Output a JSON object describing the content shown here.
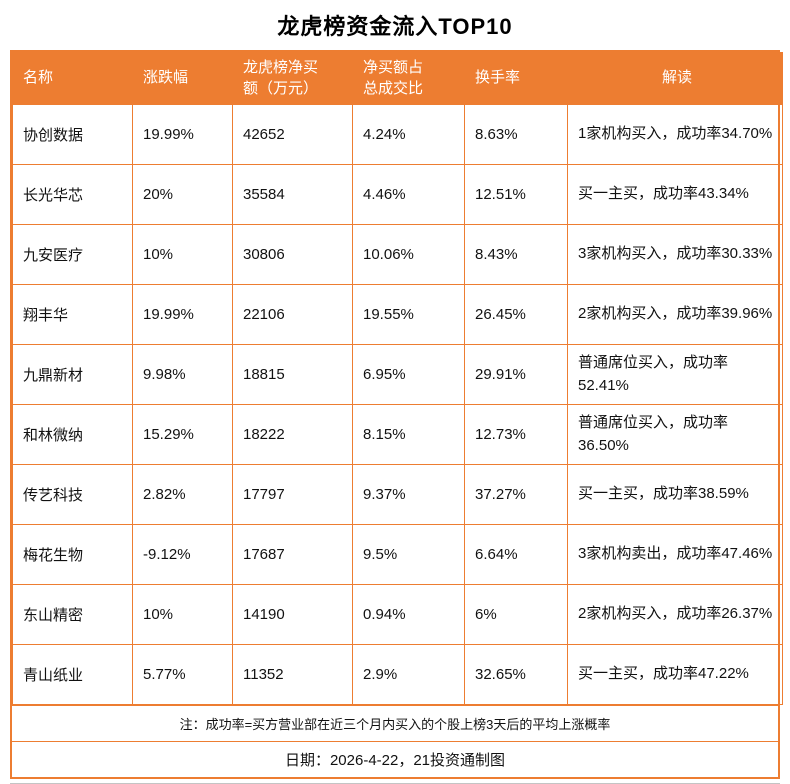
{
  "chart_data": {
    "type": "table",
    "title": "龙虎榜资金流入TOP10",
    "columns": [
      "名称",
      "涨跌幅",
      "龙虎榜净买\n额（万元）",
      "净买额占\n总成交比",
      "换手率",
      "解读"
    ],
    "rows": [
      [
        "协创数据",
        "19.99%",
        "42652",
        "4.24%",
        "8.63%",
        "1家机构买入，成功率34.70%"
      ],
      [
        "长光华芯",
        "20%",
        "35584",
        "4.46%",
        "12.51%",
        "买一主买，成功率43.34%"
      ],
      [
        "九安医疗",
        "10%",
        "30806",
        "10.06%",
        "8.43%",
        "3家机构买入，成功率30.33%"
      ],
      [
        "翔丰华",
        "19.99%",
        "22106",
        "19.55%",
        "26.45%",
        "2家机构买入，成功率39.96%"
      ],
      [
        "九鼎新材",
        "9.98%",
        "18815",
        "6.95%",
        "29.91%",
        "普通席位买入，成功率52.41%"
      ],
      [
        "和林微纳",
        "15.29%",
        "18222",
        "8.15%",
        "12.73%",
        "普通席位买入，成功率36.50%"
      ],
      [
        "传艺科技",
        "2.82%",
        "17797",
        "9.37%",
        "37.27%",
        "买一主买，成功率38.59%"
      ],
      [
        "梅花生物",
        "-9.12%",
        "17687",
        "9.5%",
        "6.64%",
        "3家机构卖出，成功率47.46%"
      ],
      [
        "东山精密",
        "10%",
        "14190",
        "0.94%",
        "6%",
        "2家机构买入，成功率26.37%"
      ],
      [
        "青山纸业",
        "5.77%",
        "11352",
        "2.9%",
        "32.65%",
        "买一主买，成功率47.22%"
      ]
    ],
    "legend": "none",
    "grid": "on"
  },
  "footer": {
    "note": "注：成功率=买方营业部在近三个月内买入的个股上榜3天后的平均上涨概率",
    "date": "日期：2026-4-22，21投资通制图"
  },
  "colors": {
    "header_bg": "#ED7D31",
    "border": "#ED7D31",
    "header_text": "#FFFFFF",
    "body_text": "#111111"
  }
}
